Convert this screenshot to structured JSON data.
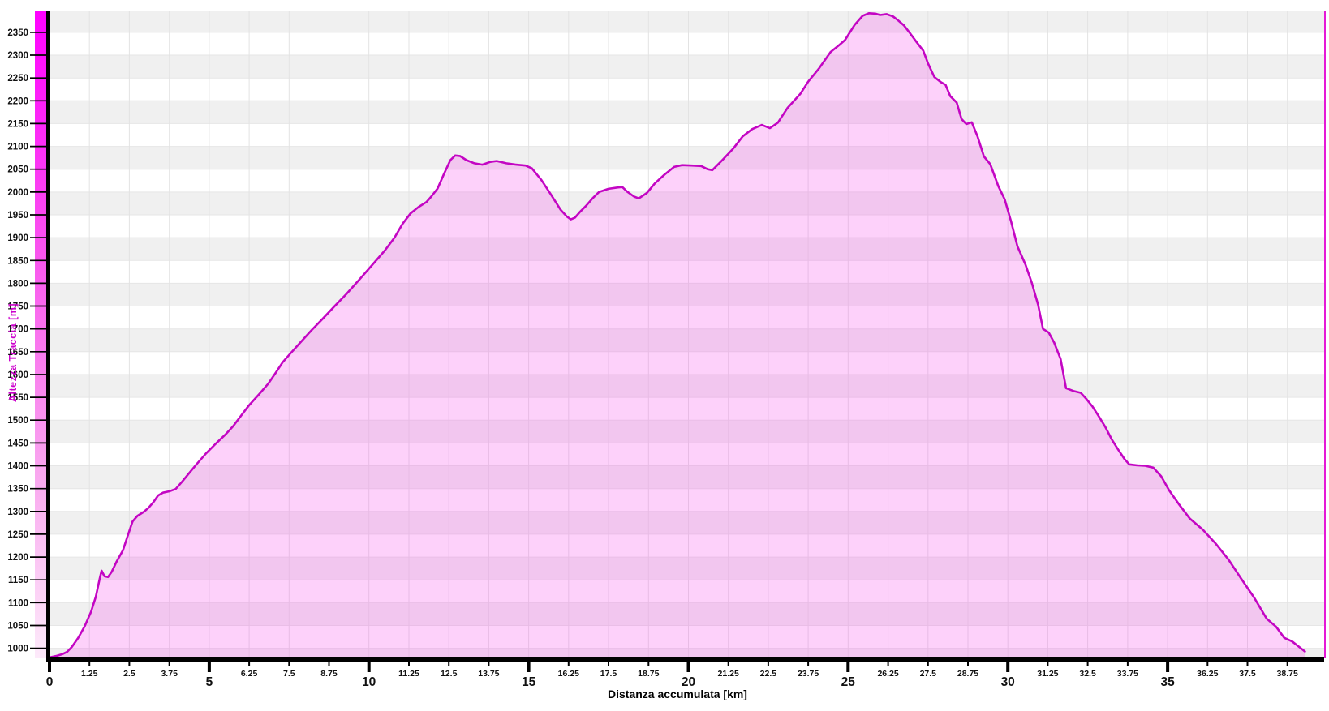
{
  "chart_data": {
    "type": "area",
    "title": "",
    "xlabel": "Distanza accumulata [km]",
    "ylabel": "Altezza Traccia [m]",
    "xlim": [
      0,
      39.9
    ],
    "ylim": [
      978,
      2396
    ],
    "x_major_ticks": [
      0,
      5,
      10,
      15,
      20,
      25,
      30,
      35
    ],
    "x_minor_ticks": [
      1.25,
      2.5,
      3.75,
      6.25,
      7.5,
      8.75,
      11.25,
      12.5,
      13.75,
      16.25,
      17.5,
      18.75,
      21.25,
      22.5,
      23.75,
      26.25,
      27.5,
      28.75,
      31.25,
      32.5,
      33.75,
      36.25,
      37.5,
      38.75
    ],
    "y_ticks": [
      1000,
      1050,
      1100,
      1150,
      1200,
      1250,
      1300,
      1350,
      1400,
      1450,
      1500,
      1550,
      1600,
      1650,
      1700,
      1750,
      1800,
      1850,
      1900,
      1950,
      2000,
      2050,
      2100,
      2150,
      2200,
      2250,
      2300,
      2350
    ],
    "grid": {
      "band_step_m": 50,
      "vline_step_km": 1.25,
      "bands_on": true
    },
    "legend": "none",
    "colors": {
      "line": "#C306C3",
      "fill": "rgba(248,70,236,0.25)",
      "band_gray": "#F0F0F0",
      "band_white": "#FFFFFF",
      "hgrid": "#E6E6E6",
      "vgrid": "#E3E3E3",
      "axis": "#000000",
      "right_border": "#E518D6",
      "y_title": "#CC00CC",
      "tick_label": "#111111",
      "gradient_bar_top": "#FF00FF",
      "gradient_bar_mid": "#F956EE",
      "gradient_bar_low": "#F9A8EF",
      "gradient_bar_bottom": "#FDEAFA"
    },
    "series": [
      {
        "name": "Altezza Traccia",
        "points": [
          [
            0,
            980
          ],
          [
            0.2,
            983
          ],
          [
            0.4,
            987
          ],
          [
            0.55,
            992
          ],
          [
            0.7,
            1003
          ],
          [
            0.9,
            1023
          ],
          [
            1.1,
            1048
          ],
          [
            1.3,
            1080
          ],
          [
            1.45,
            1113
          ],
          [
            1.57,
            1152
          ],
          [
            1.63,
            1170
          ],
          [
            1.72,
            1158
          ],
          [
            1.83,
            1156
          ],
          [
            1.95,
            1168
          ],
          [
            2.1,
            1190
          ],
          [
            2.3,
            1215
          ],
          [
            2.45,
            1247
          ],
          [
            2.6,
            1278
          ],
          [
            2.75,
            1290
          ],
          [
            2.95,
            1299
          ],
          [
            3.1,
            1308
          ],
          [
            3.25,
            1320
          ],
          [
            3.4,
            1335
          ],
          [
            3.55,
            1341
          ],
          [
            3.75,
            1344
          ],
          [
            3.95,
            1349
          ],
          [
            4.15,
            1365
          ],
          [
            4.35,
            1382
          ],
          [
            4.6,
            1403
          ],
          [
            4.9,
            1427
          ],
          [
            5.2,
            1448
          ],
          [
            5.5,
            1468
          ],
          [
            5.75,
            1487
          ],
          [
            6.0,
            1510
          ],
          [
            6.25,
            1533
          ],
          [
            6.55,
            1556
          ],
          [
            6.85,
            1580
          ],
          [
            7.1,
            1606
          ],
          [
            7.3,
            1627
          ],
          [
            7.5,
            1643
          ],
          [
            7.8,
            1666
          ],
          [
            8.2,
            1697
          ],
          [
            8.55,
            1722
          ],
          [
            8.9,
            1748
          ],
          [
            9.3,
            1777
          ],
          [
            9.7,
            1808
          ],
          [
            10.1,
            1840
          ],
          [
            10.5,
            1872
          ],
          [
            10.8,
            1900
          ],
          [
            11.05,
            1930
          ],
          [
            11.3,
            1953
          ],
          [
            11.55,
            1967
          ],
          [
            11.8,
            1978
          ],
          [
            11.95,
            1990
          ],
          [
            12.15,
            2008
          ],
          [
            12.35,
            2040
          ],
          [
            12.55,
            2070
          ],
          [
            12.7,
            2080
          ],
          [
            12.85,
            2079
          ],
          [
            13.05,
            2070
          ],
          [
            13.3,
            2063
          ],
          [
            13.55,
            2060
          ],
          [
            13.8,
            2066
          ],
          [
            14.0,
            2068
          ],
          [
            14.3,
            2063
          ],
          [
            14.6,
            2060
          ],
          [
            14.9,
            2058
          ],
          [
            15.1,
            2052
          ],
          [
            15.4,
            2026
          ],
          [
            15.7,
            1994
          ],
          [
            16.0,
            1961
          ],
          [
            16.2,
            1946
          ],
          [
            16.32,
            1940
          ],
          [
            16.45,
            1944
          ],
          [
            16.6,
            1956
          ],
          [
            16.8,
            1970
          ],
          [
            17.0,
            1986
          ],
          [
            17.2,
            2000
          ],
          [
            17.5,
            2007
          ],
          [
            17.8,
            2010
          ],
          [
            17.93,
            2011
          ],
          [
            18.08,
            2001
          ],
          [
            18.3,
            1990
          ],
          [
            18.45,
            1986
          ],
          [
            18.7,
            1998
          ],
          [
            18.95,
            2019
          ],
          [
            19.25,
            2038
          ],
          [
            19.55,
            2055
          ],
          [
            19.8,
            2059
          ],
          [
            20.1,
            2058
          ],
          [
            20.4,
            2057
          ],
          [
            20.6,
            2050
          ],
          [
            20.75,
            2048
          ],
          [
            21.05,
            2069
          ],
          [
            21.4,
            2095
          ],
          [
            21.7,
            2122
          ],
          [
            22.0,
            2138
          ],
          [
            22.3,
            2147
          ],
          [
            22.55,
            2140
          ],
          [
            22.8,
            2152
          ],
          [
            23.1,
            2184
          ],
          [
            23.5,
            2215
          ],
          [
            23.75,
            2242
          ],
          [
            24.1,
            2272
          ],
          [
            24.45,
            2307
          ],
          [
            24.7,
            2321
          ],
          [
            24.9,
            2333
          ],
          [
            25.2,
            2366
          ],
          [
            25.45,
            2386
          ],
          [
            25.65,
            2392
          ],
          [
            25.85,
            2391
          ],
          [
            26.0,
            2388
          ],
          [
            26.2,
            2390
          ],
          [
            26.4,
            2385
          ],
          [
            26.55,
            2377
          ],
          [
            26.75,
            2365
          ],
          [
            26.95,
            2347
          ],
          [
            27.15,
            2328
          ],
          [
            27.35,
            2310
          ],
          [
            27.5,
            2282
          ],
          [
            27.7,
            2252
          ],
          [
            27.9,
            2241
          ],
          [
            28.05,
            2235
          ],
          [
            28.2,
            2210
          ],
          [
            28.4,
            2196
          ],
          [
            28.55,
            2160
          ],
          [
            28.7,
            2149
          ],
          [
            28.87,
            2153
          ],
          [
            29.05,
            2122
          ],
          [
            29.25,
            2078
          ],
          [
            29.45,
            2061
          ],
          [
            29.7,
            2013
          ],
          [
            29.9,
            1984
          ],
          [
            30.1,
            1936
          ],
          [
            30.3,
            1881
          ],
          [
            30.55,
            1841
          ],
          [
            30.75,
            1801
          ],
          [
            30.95,
            1752
          ],
          [
            31.1,
            1700
          ],
          [
            31.28,
            1692
          ],
          [
            31.45,
            1670
          ],
          [
            31.65,
            1634
          ],
          [
            31.82,
            1570
          ],
          [
            32.05,
            1564
          ],
          [
            32.28,
            1560
          ],
          [
            32.45,
            1547
          ],
          [
            32.65,
            1530
          ],
          [
            32.85,
            1508
          ],
          [
            33.05,
            1485
          ],
          [
            33.25,
            1458
          ],
          [
            33.45,
            1436
          ],
          [
            33.65,
            1415
          ],
          [
            33.8,
            1403
          ],
          [
            34.05,
            1401
          ],
          [
            34.3,
            1400
          ],
          [
            34.55,
            1396
          ],
          [
            34.8,
            1377
          ],
          [
            35.05,
            1346
          ],
          [
            35.35,
            1316
          ],
          [
            35.7,
            1284
          ],
          [
            36.1,
            1260
          ],
          [
            36.5,
            1230
          ],
          [
            36.9,
            1195
          ],
          [
            37.3,
            1153
          ],
          [
            37.7,
            1112
          ],
          [
            38.1,
            1065
          ],
          [
            38.4,
            1047
          ],
          [
            38.65,
            1023
          ],
          [
            38.9,
            1015
          ],
          [
            39.1,
            1004
          ],
          [
            39.3,
            993
          ]
        ]
      }
    ]
  }
}
